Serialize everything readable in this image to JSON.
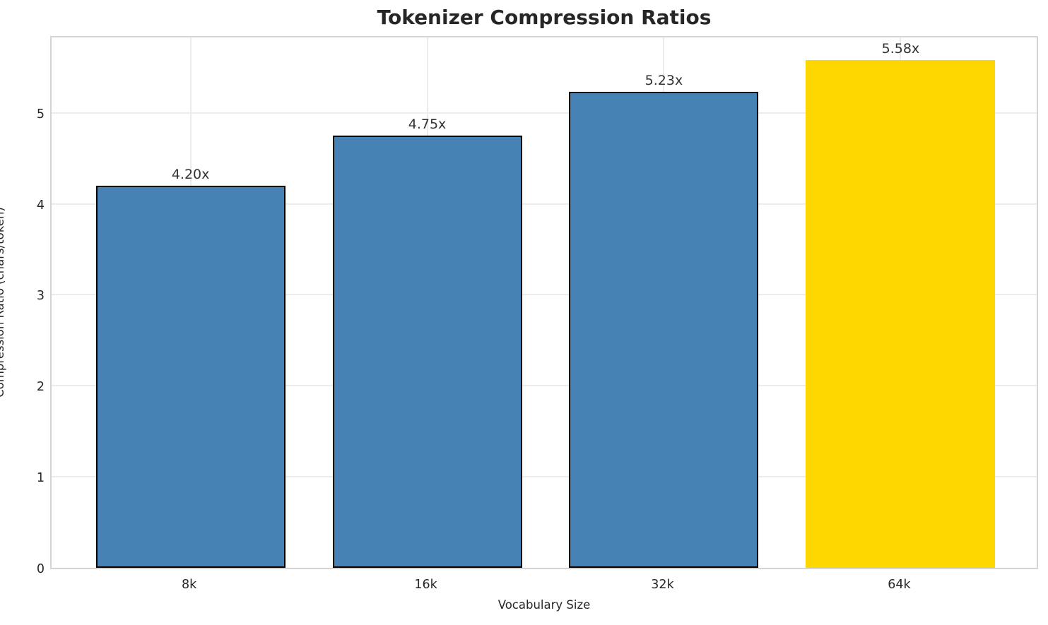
{
  "title": "Tokenizer Compression Ratios",
  "xlabel": "Vocabulary Size",
  "ylabel": "Compression Ratio (chars/token)",
  "chart_data": {
    "type": "bar",
    "title": "Tokenizer Compression Ratios",
    "xlabel": "Vocabulary Size",
    "ylabel": "Compression Ratio (chars/token)",
    "categories": [
      "8k",
      "16k",
      "32k",
      "64k"
    ],
    "values": [
      4.2,
      4.75,
      5.23,
      5.58
    ],
    "value_labels": [
      "4.20x",
      "4.75x",
      "5.23x",
      "5.58x"
    ],
    "yticks": [
      0,
      1,
      2,
      3,
      4,
      5
    ],
    "ylim": [
      0,
      5.859
    ],
    "grid": true,
    "legend_position": "none",
    "bar_colors": [
      "#4682B4",
      "#4682B4",
      "#4682B4",
      "#FFD700"
    ],
    "bar_edge_colors": [
      "#000000",
      "#000000",
      "#000000",
      "none"
    ],
    "highlight_color": "#FFD700",
    "default_bar_color": "#4682B4",
    "spine_color": "#d4d4d4",
    "grid_color": "#ececec"
  }
}
